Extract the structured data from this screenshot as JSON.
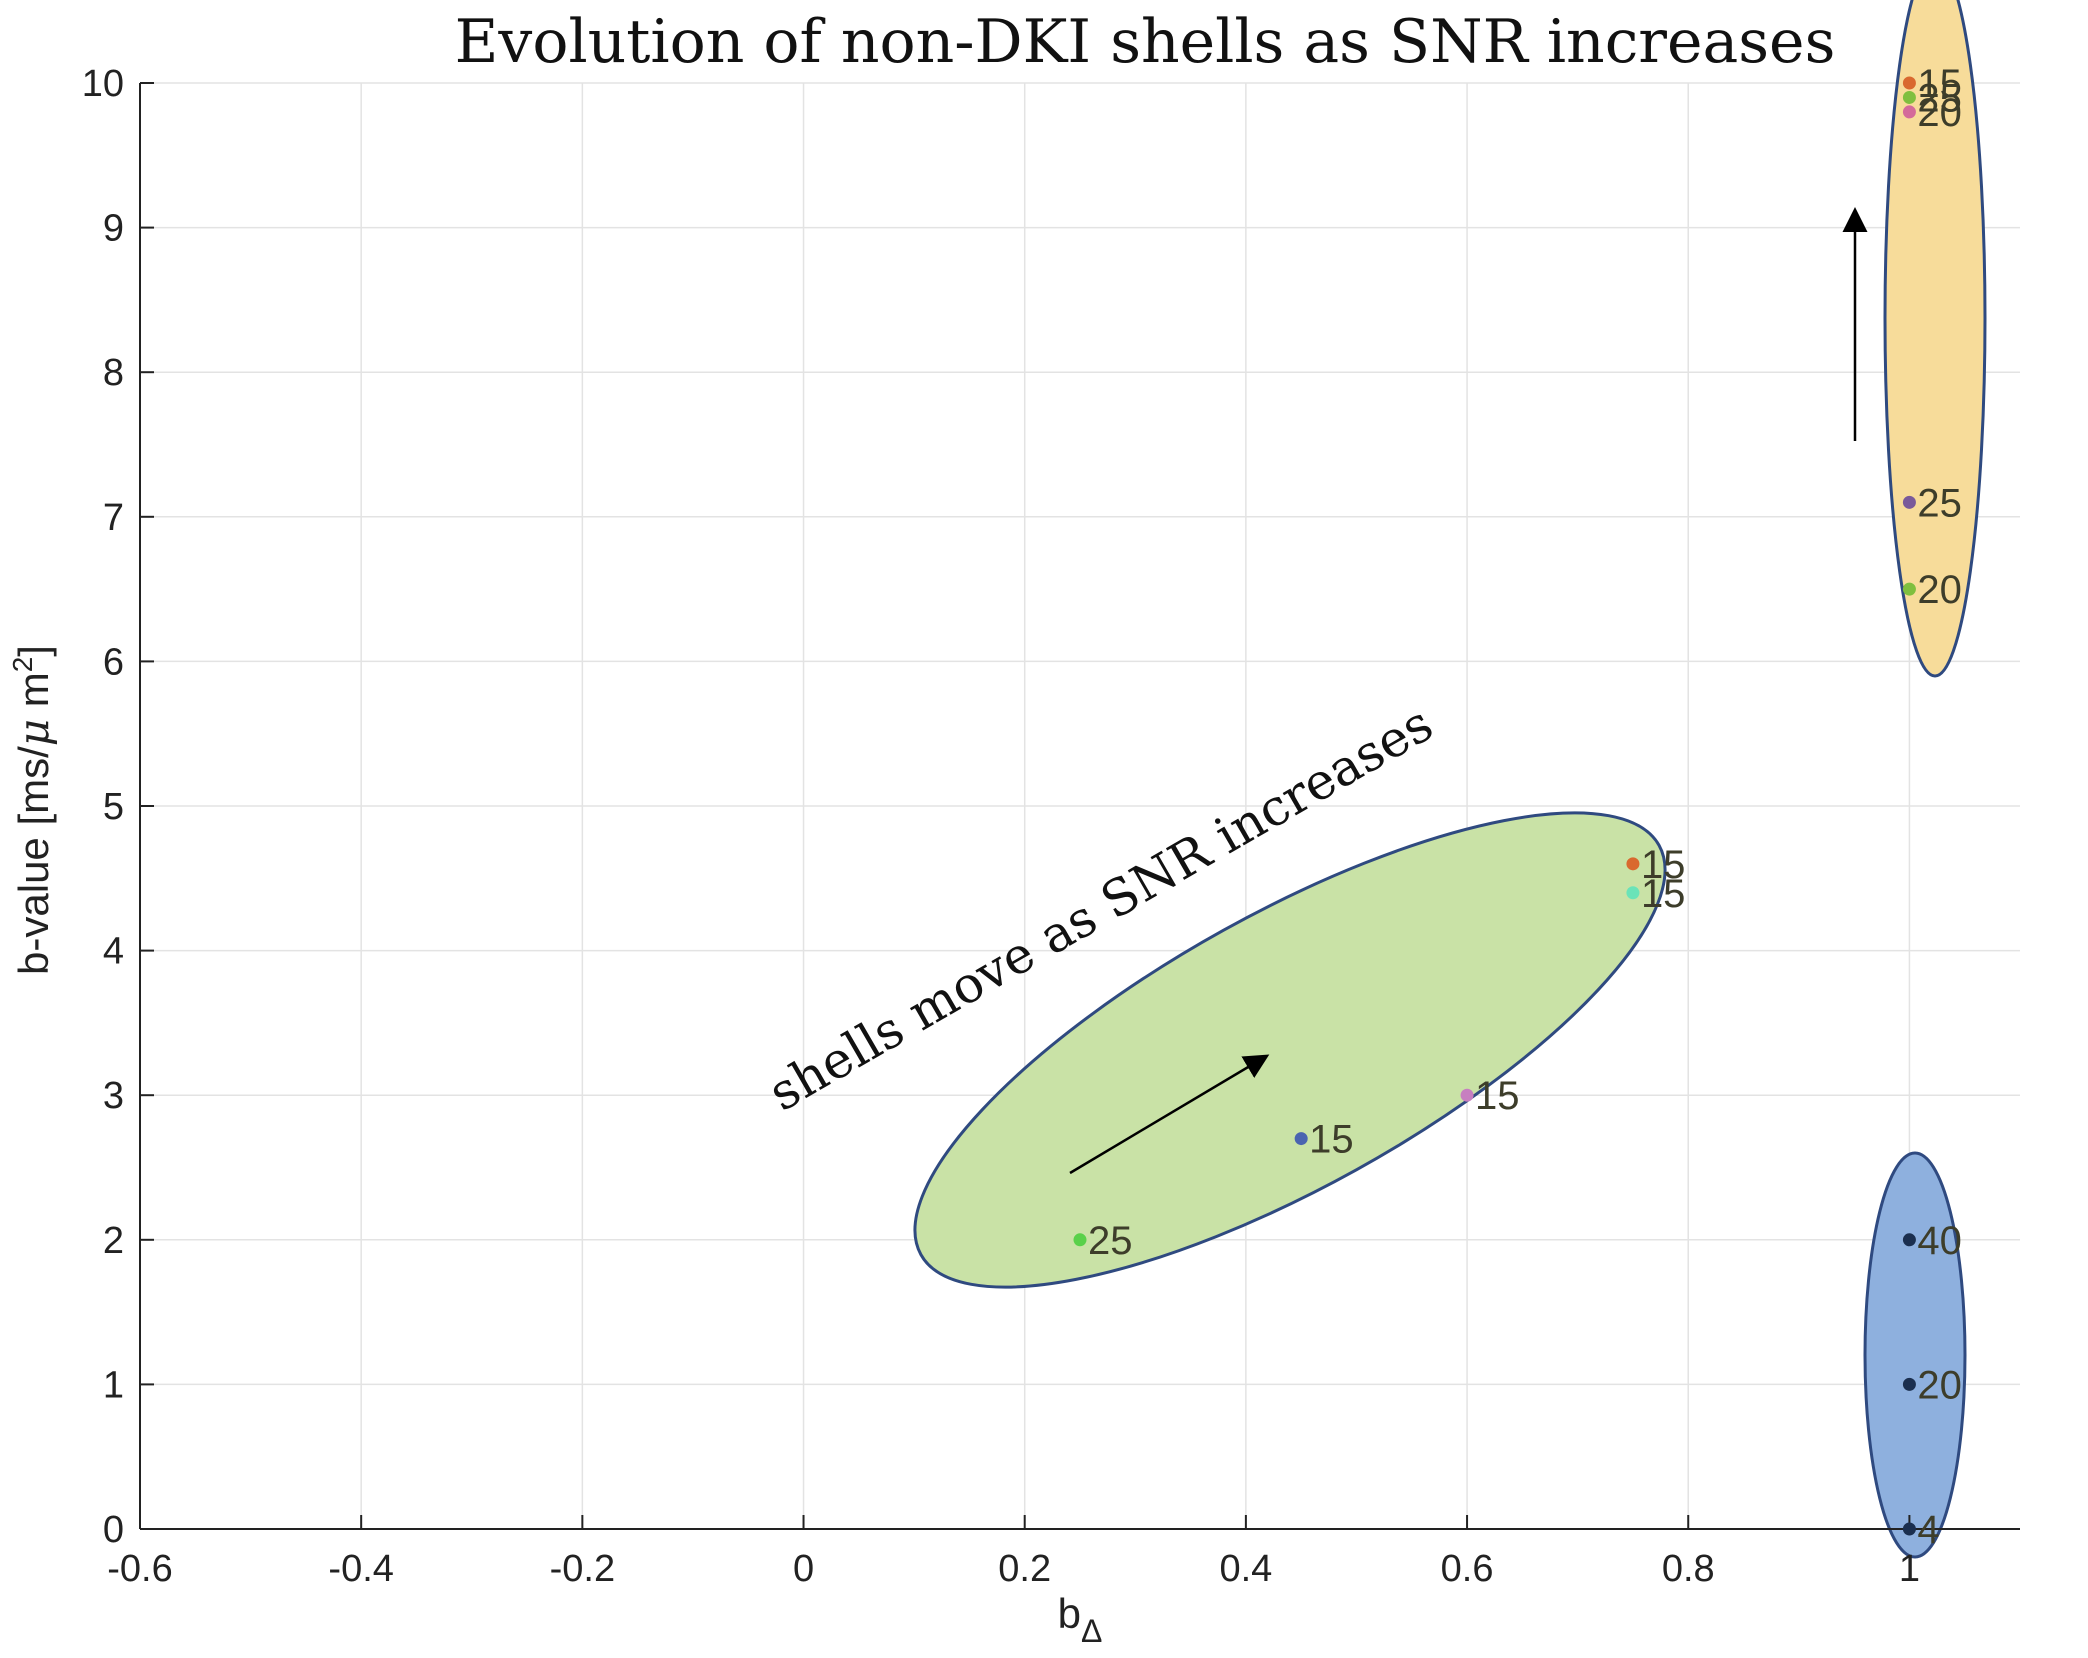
{
  "chart_data": {
    "type": "scatter",
    "title": "Evolution of non-DKI shells as SNR increases",
    "xlabel_main": "b",
    "xlabel_sub": "Δ",
    "ylabel_main": "b-value [ms/",
    "ylabel_mu": "μ",
    "ylabel_tail": " m",
    "ylabel_sup": "2",
    "ylabel_close": "]",
    "xlim": [
      -0.6,
      1.1
    ],
    "ylim": [
      0,
      10
    ],
    "x_ticks": [
      -0.6,
      -0.4,
      -0.2,
      0,
      0.2,
      0.4,
      0.6,
      0.8,
      1
    ],
    "x_tick_labels": [
      "-0.6",
      "-0.4",
      "-0.2",
      "0",
      "0.2",
      "0.4",
      "0.6",
      "0.8",
      "1"
    ],
    "y_ticks": [
      0,
      1,
      2,
      3,
      4,
      5,
      6,
      7,
      8,
      9,
      10
    ],
    "y_tick_labels": [
      "0",
      "1",
      "2",
      "3",
      "4",
      "5",
      "6",
      "7",
      "8",
      "9",
      "10"
    ],
    "grid": true,
    "annotation": "shells move as SNR increases",
    "colors": {
      "green_fill": "#c9e2a6",
      "yellow_fill": "#f7dc9a",
      "blue_fill": "#8eb0de",
      "ellipse_stroke": "#2f4a80"
    },
    "points": [
      {
        "x": 0.25,
        "y": 2.0,
        "label": "25",
        "color": "#59d14a"
      },
      {
        "x": 0.45,
        "y": 2.7,
        "label": "15",
        "color": "#4a64b0"
      },
      {
        "x": 0.6,
        "y": 3.0,
        "label": "15",
        "color": "#c77fc0"
      },
      {
        "x": 0.75,
        "y": 4.4,
        "label": "15",
        "color": "#6be3b8"
      },
      {
        "x": 0.75,
        "y": 4.6,
        "label": "15",
        "color": "#d9692f"
      },
      {
        "x": 1.0,
        "y": 6.5,
        "label": "20",
        "color": "#7fbf3f"
      },
      {
        "x": 1.0,
        "y": 7.1,
        "label": "25",
        "color": "#7a5a9a"
      },
      {
        "x": 1.0,
        "y": 9.8,
        "label": "20",
        "color": "#d46a9a"
      },
      {
        "x": 1.0,
        "y": 9.9,
        "label": "25",
        "color": "#7fbf3f"
      },
      {
        "x": 1.0,
        "y": 10.0,
        "label": "15",
        "color": "#d9692f"
      },
      {
        "x": 1.0,
        "y": 0.0,
        "label": "4",
        "color": "#1b2f4f"
      },
      {
        "x": 1.0,
        "y": 1.0,
        "label": "20",
        "color": "#1b2f4f"
      },
      {
        "x": 1.0,
        "y": 2.0,
        "label": "40",
        "color": "#1b2f4f"
      }
    ]
  }
}
